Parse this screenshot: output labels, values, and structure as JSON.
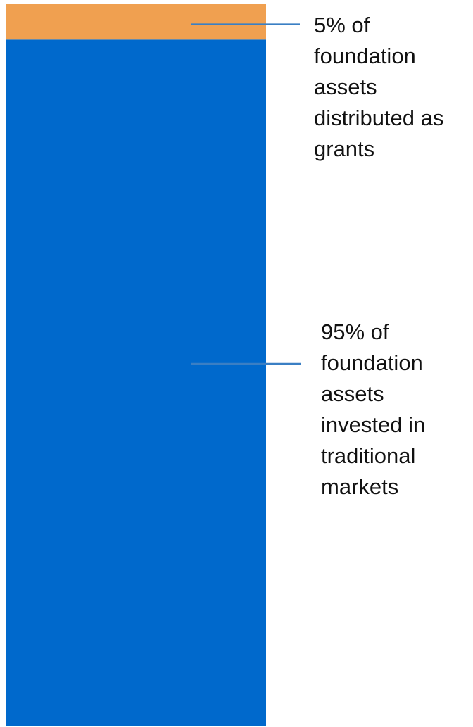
{
  "chart_data": {
    "type": "bar",
    "layout": "single-stacked-column",
    "unit": "% of foundation assets",
    "ylim": [
      0,
      100
    ],
    "grid": false,
    "legend": "none",
    "series": [
      {
        "key": "invested",
        "value": 95,
        "color": "#0069CC"
      },
      {
        "key": "grants",
        "value": 5,
        "color": "#F0A050"
      }
    ],
    "annotations": [
      {
        "series": "grants",
        "text": "5% of\nfoundation\nassets\ndistributed as\ngrants"
      },
      {
        "series": "invested",
        "text": "95% of\nfoundation\nassets\ninvested in\ntraditional\nmarkets"
      }
    ],
    "leader_color": "#3A7FC4"
  }
}
